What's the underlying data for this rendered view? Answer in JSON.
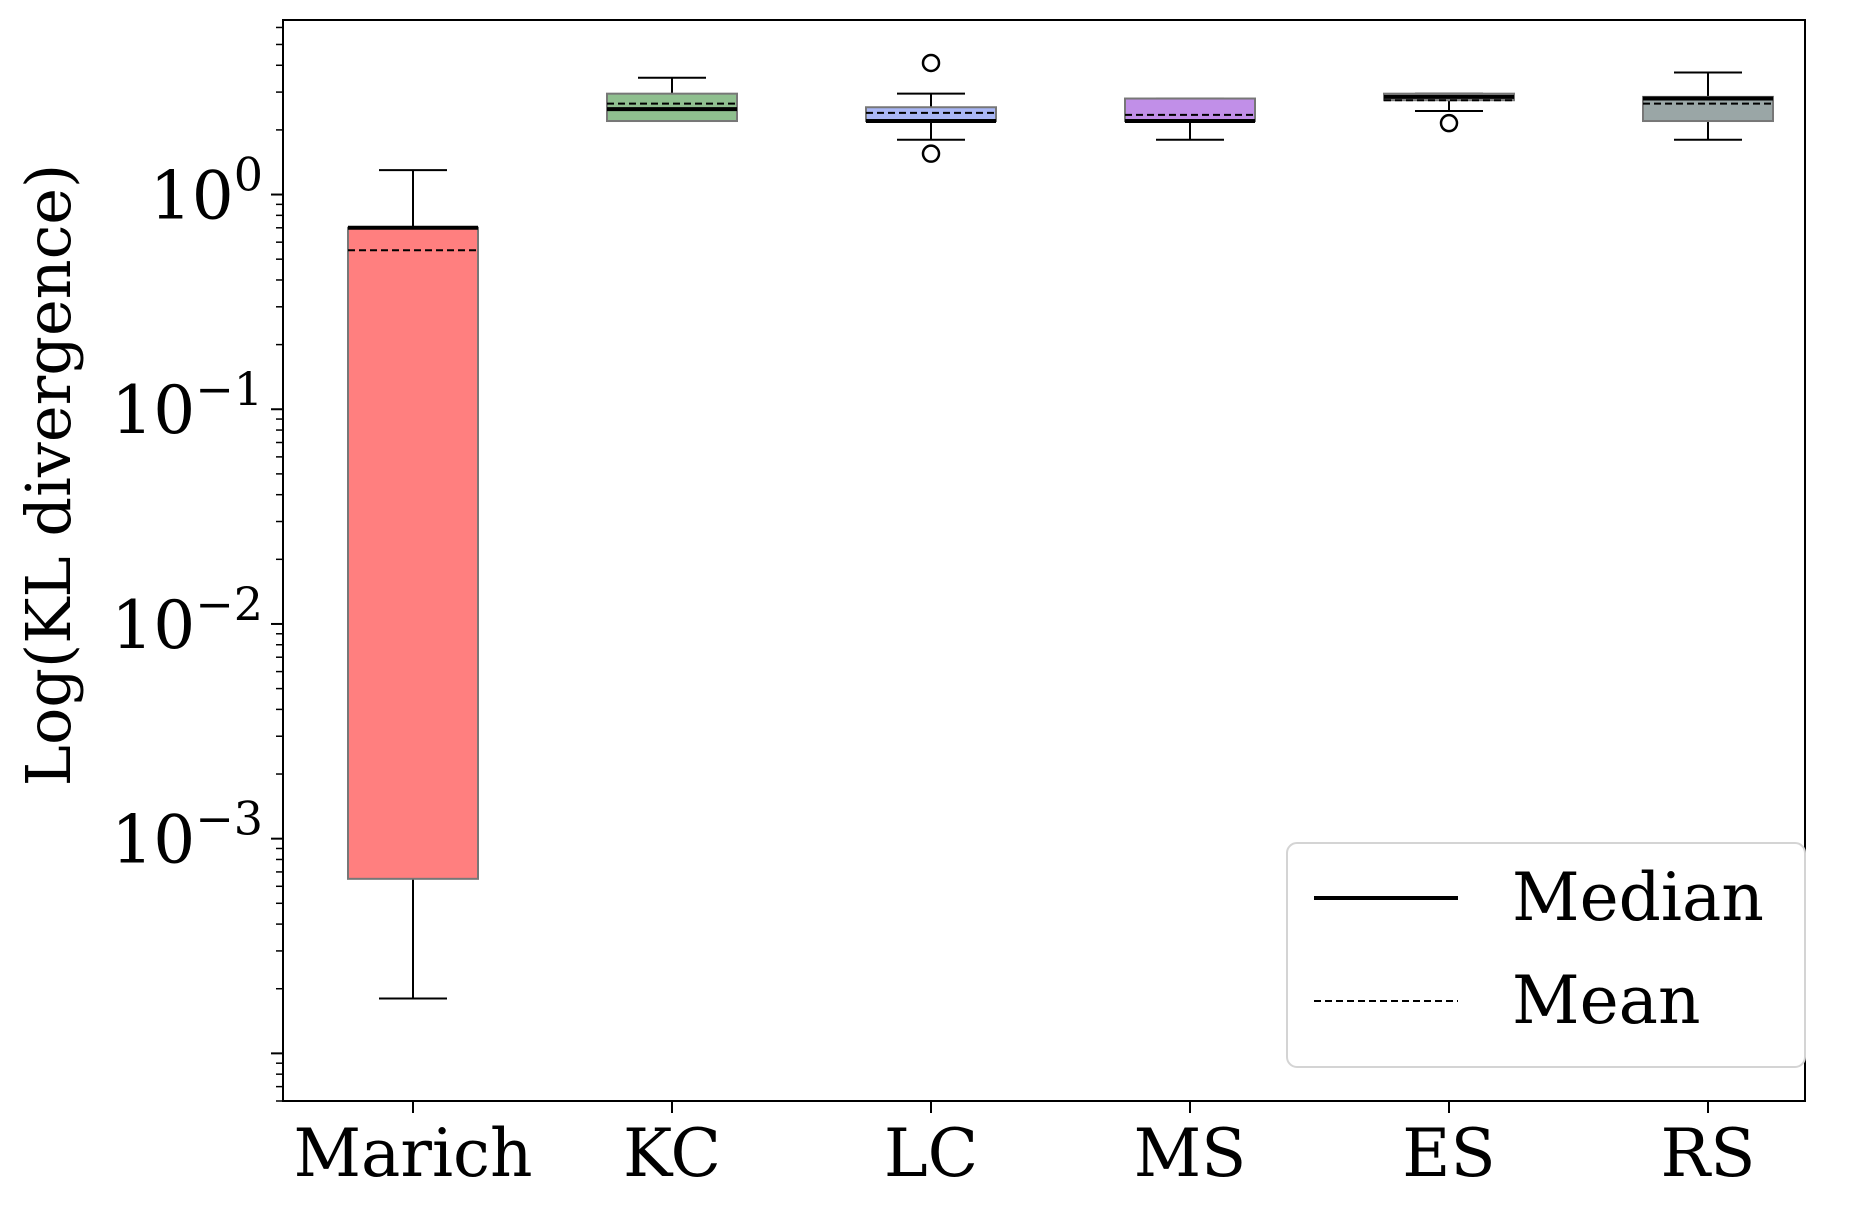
{
  "chart_data": {
    "type": "box",
    "title": "",
    "xlabel": "",
    "ylabel": "Log(KL divergence)",
    "yscale": "log",
    "ylim": [
      6e-05,
      6.5
    ],
    "grid": false,
    "legend_position": "lower-right",
    "legend": [
      {
        "label": "Median",
        "style": "solid"
      },
      {
        "label": "Mean",
        "style": "dashed"
      }
    ],
    "y_ticks": [
      {
        "value": 1,
        "base": "10",
        "exp": "0"
      },
      {
        "value": 0.1,
        "base": "10",
        "exp": "−1"
      },
      {
        "value": 0.01,
        "base": "10",
        "exp": "−2"
      },
      {
        "value": 0.001,
        "base": "10",
        "exp": "−3"
      }
    ],
    "categories": [
      "Marich",
      "KC",
      "LC",
      "MS",
      "ES",
      "RS"
    ],
    "boxes": [
      {
        "name": "Marich",
        "color": "#ff7f7f",
        "whisker_low": 0.00018,
        "q1": 0.00065,
        "median": 0.7,
        "mean": 0.55,
        "q3": 0.7,
        "whisker_high": 1.3,
        "outliers": []
      },
      {
        "name": "KC",
        "color": "#8fbf8f",
        "whisker_low": 2.2,
        "q1": 2.2,
        "median": 2.5,
        "mean": 2.65,
        "q3": 2.95,
        "whisker_high": 3.5,
        "outliers": []
      },
      {
        "name": "LC",
        "color": "#a9b6f5",
        "whisker_low": 1.8,
        "q1": 2.2,
        "median": 2.2,
        "mean": 2.4,
        "q3": 2.55,
        "whisker_high": 2.95,
        "outliers": [
          1.55,
          4.1
        ]
      },
      {
        "name": "MS",
        "color": "#c18fe8",
        "whisker_low": 1.8,
        "q1": 2.2,
        "median": 2.2,
        "mean": 2.35,
        "q3": 2.8,
        "whisker_high": 2.8,
        "outliers": []
      },
      {
        "name": "ES",
        "color": "#b3b3b3",
        "whisker_low": 2.45,
        "q1": 2.75,
        "median": 2.85,
        "mean": 2.75,
        "q3": 2.95,
        "whisker_high": 2.95,
        "outliers": [
          2.15
        ]
      },
      {
        "name": "RS",
        "color": "#9aa6a6",
        "whisker_low": 1.8,
        "q1": 2.2,
        "median": 2.8,
        "mean": 2.65,
        "q3": 2.85,
        "whisker_high": 3.7,
        "outliers": []
      }
    ]
  }
}
